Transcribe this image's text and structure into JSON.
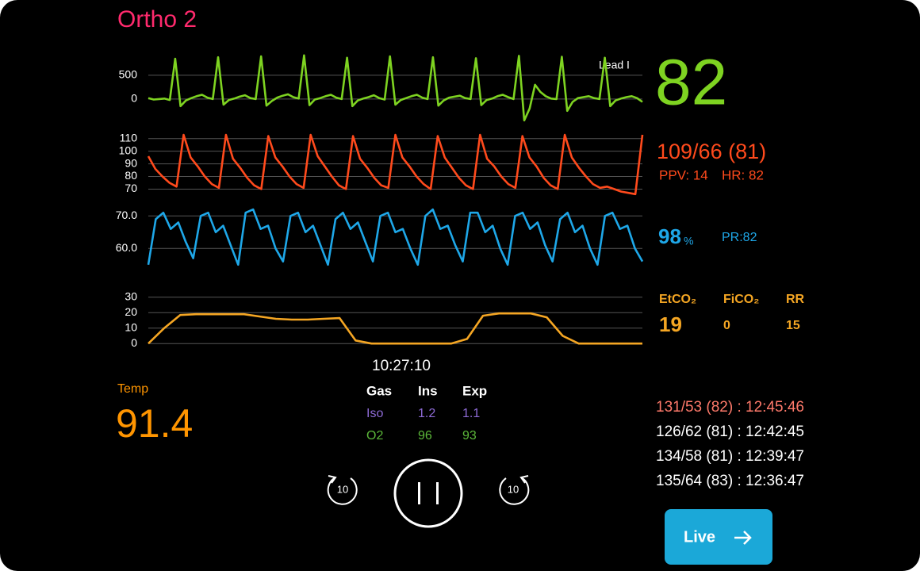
{
  "title": "Ortho 2",
  "waveforms": {
    "ecg": {
      "label": "Lead I",
      "color": "#7ed321",
      "ylim": [
        -420,
        950
      ],
      "yticks": [
        0,
        500
      ],
      "values": [
        20,
        -10,
        0,
        10,
        -20,
        850,
        -150,
        -30,
        20,
        60,
        90,
        30,
        0,
        880,
        -120,
        -20,
        10,
        50,
        80,
        20,
        0,
        900,
        -140,
        -40,
        30,
        70,
        100,
        40,
        10,
        920,
        -130,
        -10,
        20,
        60,
        90,
        30,
        0,
        870,
        -150,
        -30,
        10,
        40,
        80,
        20,
        -10,
        900,
        -120,
        -20,
        20,
        60,
        90,
        30,
        0,
        880,
        -140,
        -30,
        30,
        50,
        70,
        20,
        0,
        860,
        -130,
        -20,
        10,
        60,
        90,
        40,
        0,
        910,
        -450,
        -200,
        300,
        150,
        60,
        10,
        0,
        890,
        -250,
        -60,
        20,
        40,
        60,
        20,
        0,
        870,
        -150,
        -30,
        10,
        40,
        60,
        20,
        -60
      ]
    },
    "abp": {
      "color": "#ff4a1c",
      "ylim": [
        64,
        118
      ],
      "yticks": [
        70,
        80,
        90,
        100,
        110
      ],
      "values": [
        96,
        86,
        80,
        75,
        72,
        113,
        95,
        88,
        80,
        74,
        71,
        113,
        94,
        87,
        79,
        73,
        70,
        112,
        95,
        88,
        80,
        74,
        71,
        113,
        96,
        88,
        80,
        73,
        70,
        112,
        94,
        87,
        79,
        73,
        71,
        113,
        95,
        88,
        80,
        74,
        70,
        112,
        95,
        87,
        79,
        73,
        70,
        113,
        94,
        88,
        80,
        74,
        71,
        112,
        95,
        88,
        79,
        73,
        70,
        113,
        95,
        87,
        80,
        74,
        71,
        72,
        70,
        68,
        67,
        66,
        113
      ]
    },
    "pleth": {
      "color": "#1ea7e8",
      "ylim": [
        53,
        72.5
      ],
      "yticks": [
        {
          "value": 70,
          "label": "70.0"
        },
        {
          "value": 60,
          "label": "60.0"
        }
      ],
      "values": [
        55,
        69,
        71,
        66,
        68,
        62,
        57,
        70,
        71,
        65,
        67,
        61,
        55,
        71,
        72,
        66,
        67,
        60,
        56,
        70,
        71,
        65,
        67,
        61,
        55,
        69,
        71,
        66,
        68,
        62,
        56,
        70,
        71,
        65,
        66,
        60,
        55,
        70,
        72,
        66,
        67,
        61,
        56,
        71,
        71,
        65,
        67,
        60,
        55,
        70,
        71,
        66,
        68,
        61,
        56,
        69,
        71,
        65,
        67,
        60,
        55,
        70,
        71,
        66,
        67,
        60,
        56
      ]
    },
    "co2": {
      "color": "#f5a623",
      "ylim": [
        -4.5,
        35
      ],
      "yticks": [
        0,
        10,
        20,
        30
      ],
      "values": [
        0,
        10,
        18.5,
        19,
        19,
        19,
        19,
        17.5,
        16,
        15.5,
        15.5,
        16,
        16.5,
        2,
        0,
        0,
        0,
        0,
        0,
        0,
        3,
        18,
        19.5,
        19.5,
        19.5,
        17,
        5,
        0,
        0,
        0,
        0,
        0
      ]
    }
  },
  "vitals": {
    "hr": "82",
    "abp": "109/66 (81)",
    "ppv": "PPV: 14",
    "abp_hr": "HR: 82",
    "spo2": "98",
    "spo2_unit": "%",
    "pr": "PR:82",
    "etco2_label": "EtCO₂",
    "fico2_label": "FiCO₂",
    "rr_label": "RR",
    "etco2": "19",
    "fico2": "0",
    "rr": "15"
  },
  "time": "10:27:10",
  "temp": {
    "label": "Temp",
    "value": "91.4"
  },
  "gas": {
    "header": [
      "Gas",
      "Ins",
      "Exp"
    ],
    "rows": [
      [
        "Iso",
        "1.2",
        "1.1"
      ],
      [
        "O2",
        "96",
        "93"
      ]
    ]
  },
  "history": [
    "131/53 (82) : 12:45:46",
    "126/62 (81) : 12:42:45",
    "134/58 (81) : 12:39:47",
    "135/64 (83) : 12:36:47"
  ],
  "controls": {
    "rewind": "10",
    "forward": "10",
    "live": "Live"
  }
}
